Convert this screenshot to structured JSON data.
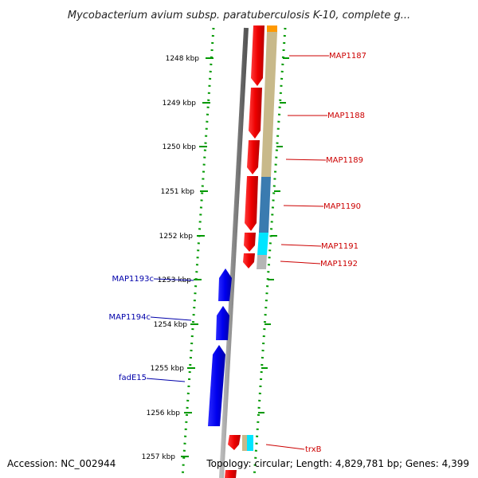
{
  "header": {
    "title": "Mycobacterium avium subsp. paratuberculosis K-10, complete g..."
  },
  "footer": {
    "accession": "Accession: NC_002944",
    "summary": "Topology: circular; Length: 4,829,781 bp; Genes: 4,399"
  },
  "colors": {
    "forward_gene": "#ee0000",
    "reverse_gene": "#0000ee",
    "backbone": "#888888",
    "tick": "#009900",
    "cog_tan": "#c8b98a",
    "cog_blue": "#3a7bb0",
    "cog_cyan": "#00e5ff",
    "cog_gray": "#b5b5b5",
    "cog_orange": "#ff9900"
  },
  "ticks": [
    {
      "label": "1248 kbp"
    },
    {
      "label": "1249 kbp"
    },
    {
      "label": "1250 kbp"
    },
    {
      "label": "1251 kbp"
    },
    {
      "label": "1252 kbp"
    },
    {
      "label": "1253 kbp"
    },
    {
      "label": "1254 kbp"
    },
    {
      "label": "1255 kbp"
    },
    {
      "label": "1256 kbp"
    },
    {
      "label": "1257 kbp"
    }
  ],
  "genes_forward": [
    {
      "label": "MAP1187"
    },
    {
      "label": "MAP1188"
    },
    {
      "label": "MAP1189"
    },
    {
      "label": "MAP1190"
    },
    {
      "label": "MAP1191"
    },
    {
      "label": "MAP1192"
    },
    {
      "label": "trxB"
    }
  ],
  "genes_reverse": [
    {
      "label": "MAP1193c"
    },
    {
      "label": "MAP1194c"
    },
    {
      "label": "fadE15"
    }
  ]
}
